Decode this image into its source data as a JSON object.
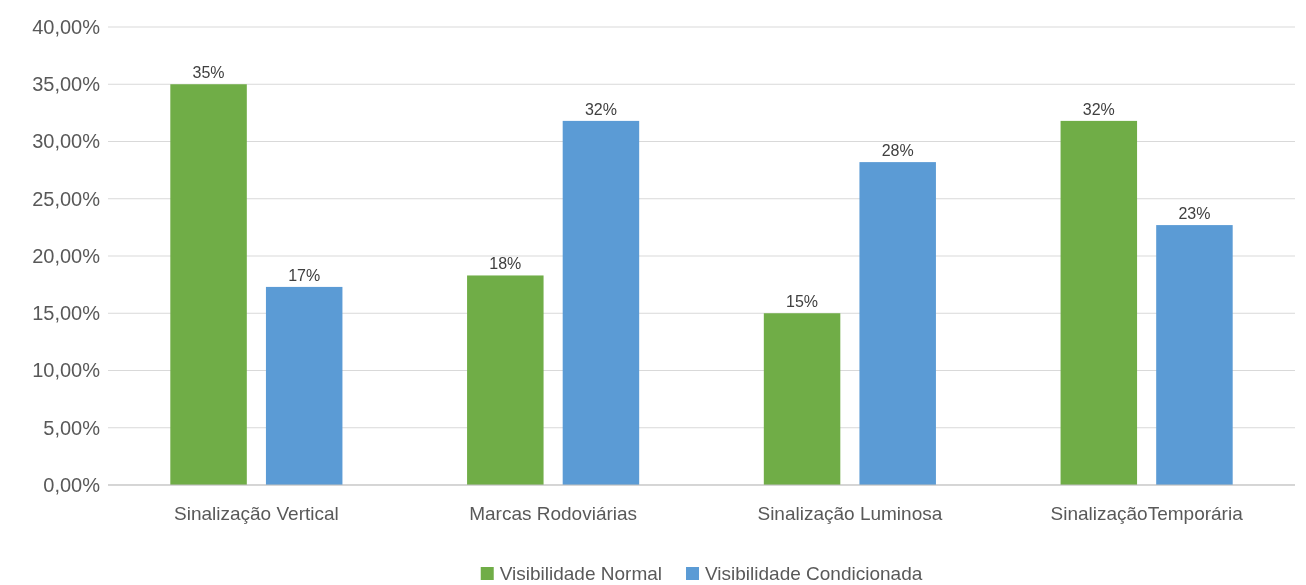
{
  "chart_data": {
    "type": "bar",
    "categories": [
      "Sinalização Vertical",
      "Marcas Rodoviárias",
      "Sinalização Luminosa",
      "SinalizaçãoTemporária"
    ],
    "series": [
      {
        "name": "Visibilidade Normal",
        "color": "#70ad47",
        "values": [
          35.0,
          18.3,
          15.0,
          31.8
        ],
        "value_labels": [
          "35%",
          "18%",
          "15%",
          "32%"
        ]
      },
      {
        "name": "Visibilidade Condicionada",
        "color": "#5b9bd5",
        "values": [
          17.3,
          31.8,
          28.2,
          22.7
        ],
        "value_labels": [
          "17%",
          "32%",
          "28%",
          "23%"
        ]
      }
    ],
    "ylim": [
      0,
      40
    ],
    "yticks": [
      {
        "value": 0,
        "label": "0,00%"
      },
      {
        "value": 5,
        "label": "5,00%"
      },
      {
        "value": 10,
        "label": "10,00%"
      },
      {
        "value": 15,
        "label": "15,00%"
      },
      {
        "value": 20,
        "label": "20,00%"
      },
      {
        "value": 25,
        "label": "25,00%"
      },
      {
        "value": 30,
        "label": "30,00%"
      },
      {
        "value": 35,
        "label": "35,00%"
      },
      {
        "value": 40,
        "label": "40,00%"
      }
    ],
    "grid": "y",
    "legend": "bottom"
  }
}
